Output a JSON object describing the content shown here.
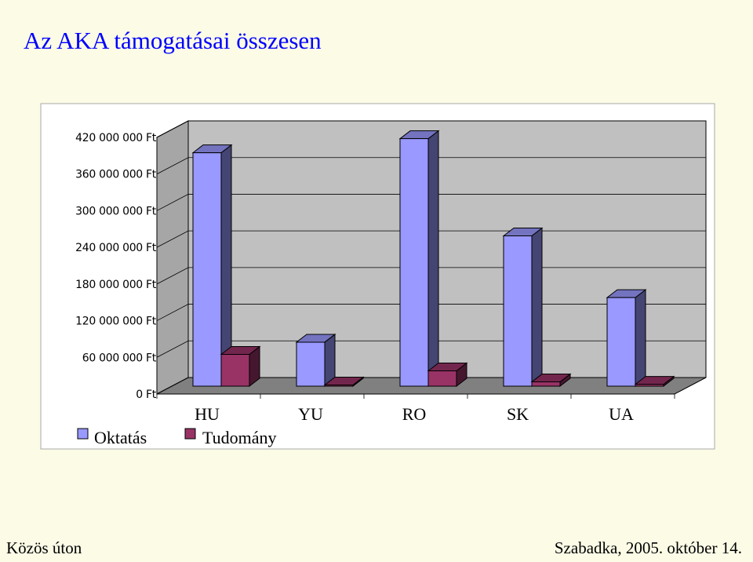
{
  "slide": {
    "title": "Az AKA támogatásai összesen",
    "footer_left": "Közös úton",
    "footer_right": "Szabadka, 2005. október 14."
  },
  "chart_data": {
    "type": "bar",
    "title": "",
    "xlabel": "",
    "ylabel": "",
    "categories": [
      "HU",
      "YU",
      "RO",
      "SK",
      "UA"
    ],
    "series": [
      {
        "name": "Oktatás",
        "color": "#9999ff",
        "values": [
          382000000,
          72000000,
          405000000,
          246000000,
          145000000
        ]
      },
      {
        "name": "Tudomány",
        "color": "#993366",
        "values": [
          52000000,
          1000000,
          25000000,
          7000000,
          3000000
        ]
      }
    ],
    "ylim": [
      0,
      420000000
    ],
    "yticks": [
      0,
      60000000,
      120000000,
      180000000,
      240000000,
      300000000,
      360000000,
      420000000
    ],
    "ytick_labels": [
      "0 Ft",
      "60 000 000 Ft",
      "120 000 000 Ft",
      "180 000 000 Ft",
      "240 000 000 Ft",
      "300 000 000 Ft",
      "360 000 000 Ft",
      "420 000 000 Ft"
    ],
    "grid": true,
    "legend": "bottom-left",
    "style": "3d"
  }
}
